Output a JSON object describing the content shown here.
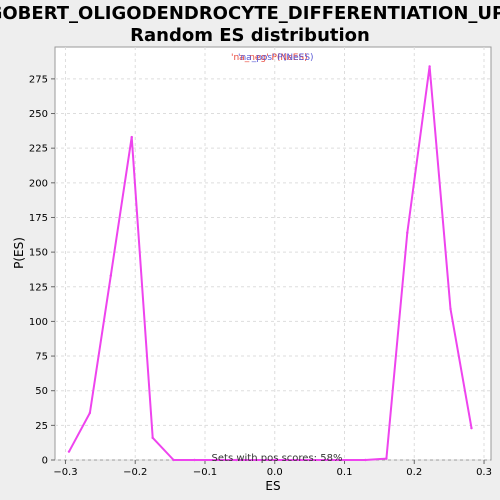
{
  "chart_data": {
    "type": "line",
    "title_line1": "GOBERT_OLIGODENDROCYTE_DIFFERENTIATION_UP:",
    "title_line2": "Random ES distribution",
    "xlabel": "ES",
    "ylabel": "P(ES)",
    "xlim": [
      -0.315,
      0.31
    ],
    "ylim": [
      0,
      298
    ],
    "xticks": [
      -0.3,
      -0.2,
      -0.1,
      0.0,
      0.1,
      0.2,
      0.3
    ],
    "xtick_labels": [
      "−0.3",
      "−0.2",
      "−0.1",
      "0.0",
      "0.1",
      "0.2",
      "0.3"
    ],
    "yticks": [
      0,
      25,
      50,
      75,
      100,
      125,
      150,
      175,
      200,
      225,
      250,
      275
    ],
    "ytick_labels": [
      "0",
      "25",
      "50",
      "75",
      "100",
      "125",
      "150",
      "175",
      "200",
      "225",
      "250",
      "275"
    ],
    "grid": true,
    "legend": {
      "position": "top-center",
      "entries": [
        {
          "text": "'na_neg' P(NeES)",
          "color": "#e8463a"
        },
        {
          "text": "'na_pos' P(NeES)",
          "color": "#5b5bd6"
        }
      ]
    },
    "annotation": "Sets with pos scores: 58%",
    "series": [
      {
        "color": "#ee44ee",
        "x": [
          -0.295,
          -0.265,
          -0.235,
          -0.205,
          -0.175,
          -0.145,
          -0.115,
          -0.085,
          -0.055,
          0.0,
          0.05,
          0.13,
          0.16,
          0.19,
          0.222,
          0.252,
          0.282
        ],
        "y": [
          6,
          34,
          133,
          233,
          16,
          0,
          0,
          0,
          0,
          0,
          0,
          0,
          1,
          164,
          284,
          109,
          23
        ]
      }
    ]
  }
}
